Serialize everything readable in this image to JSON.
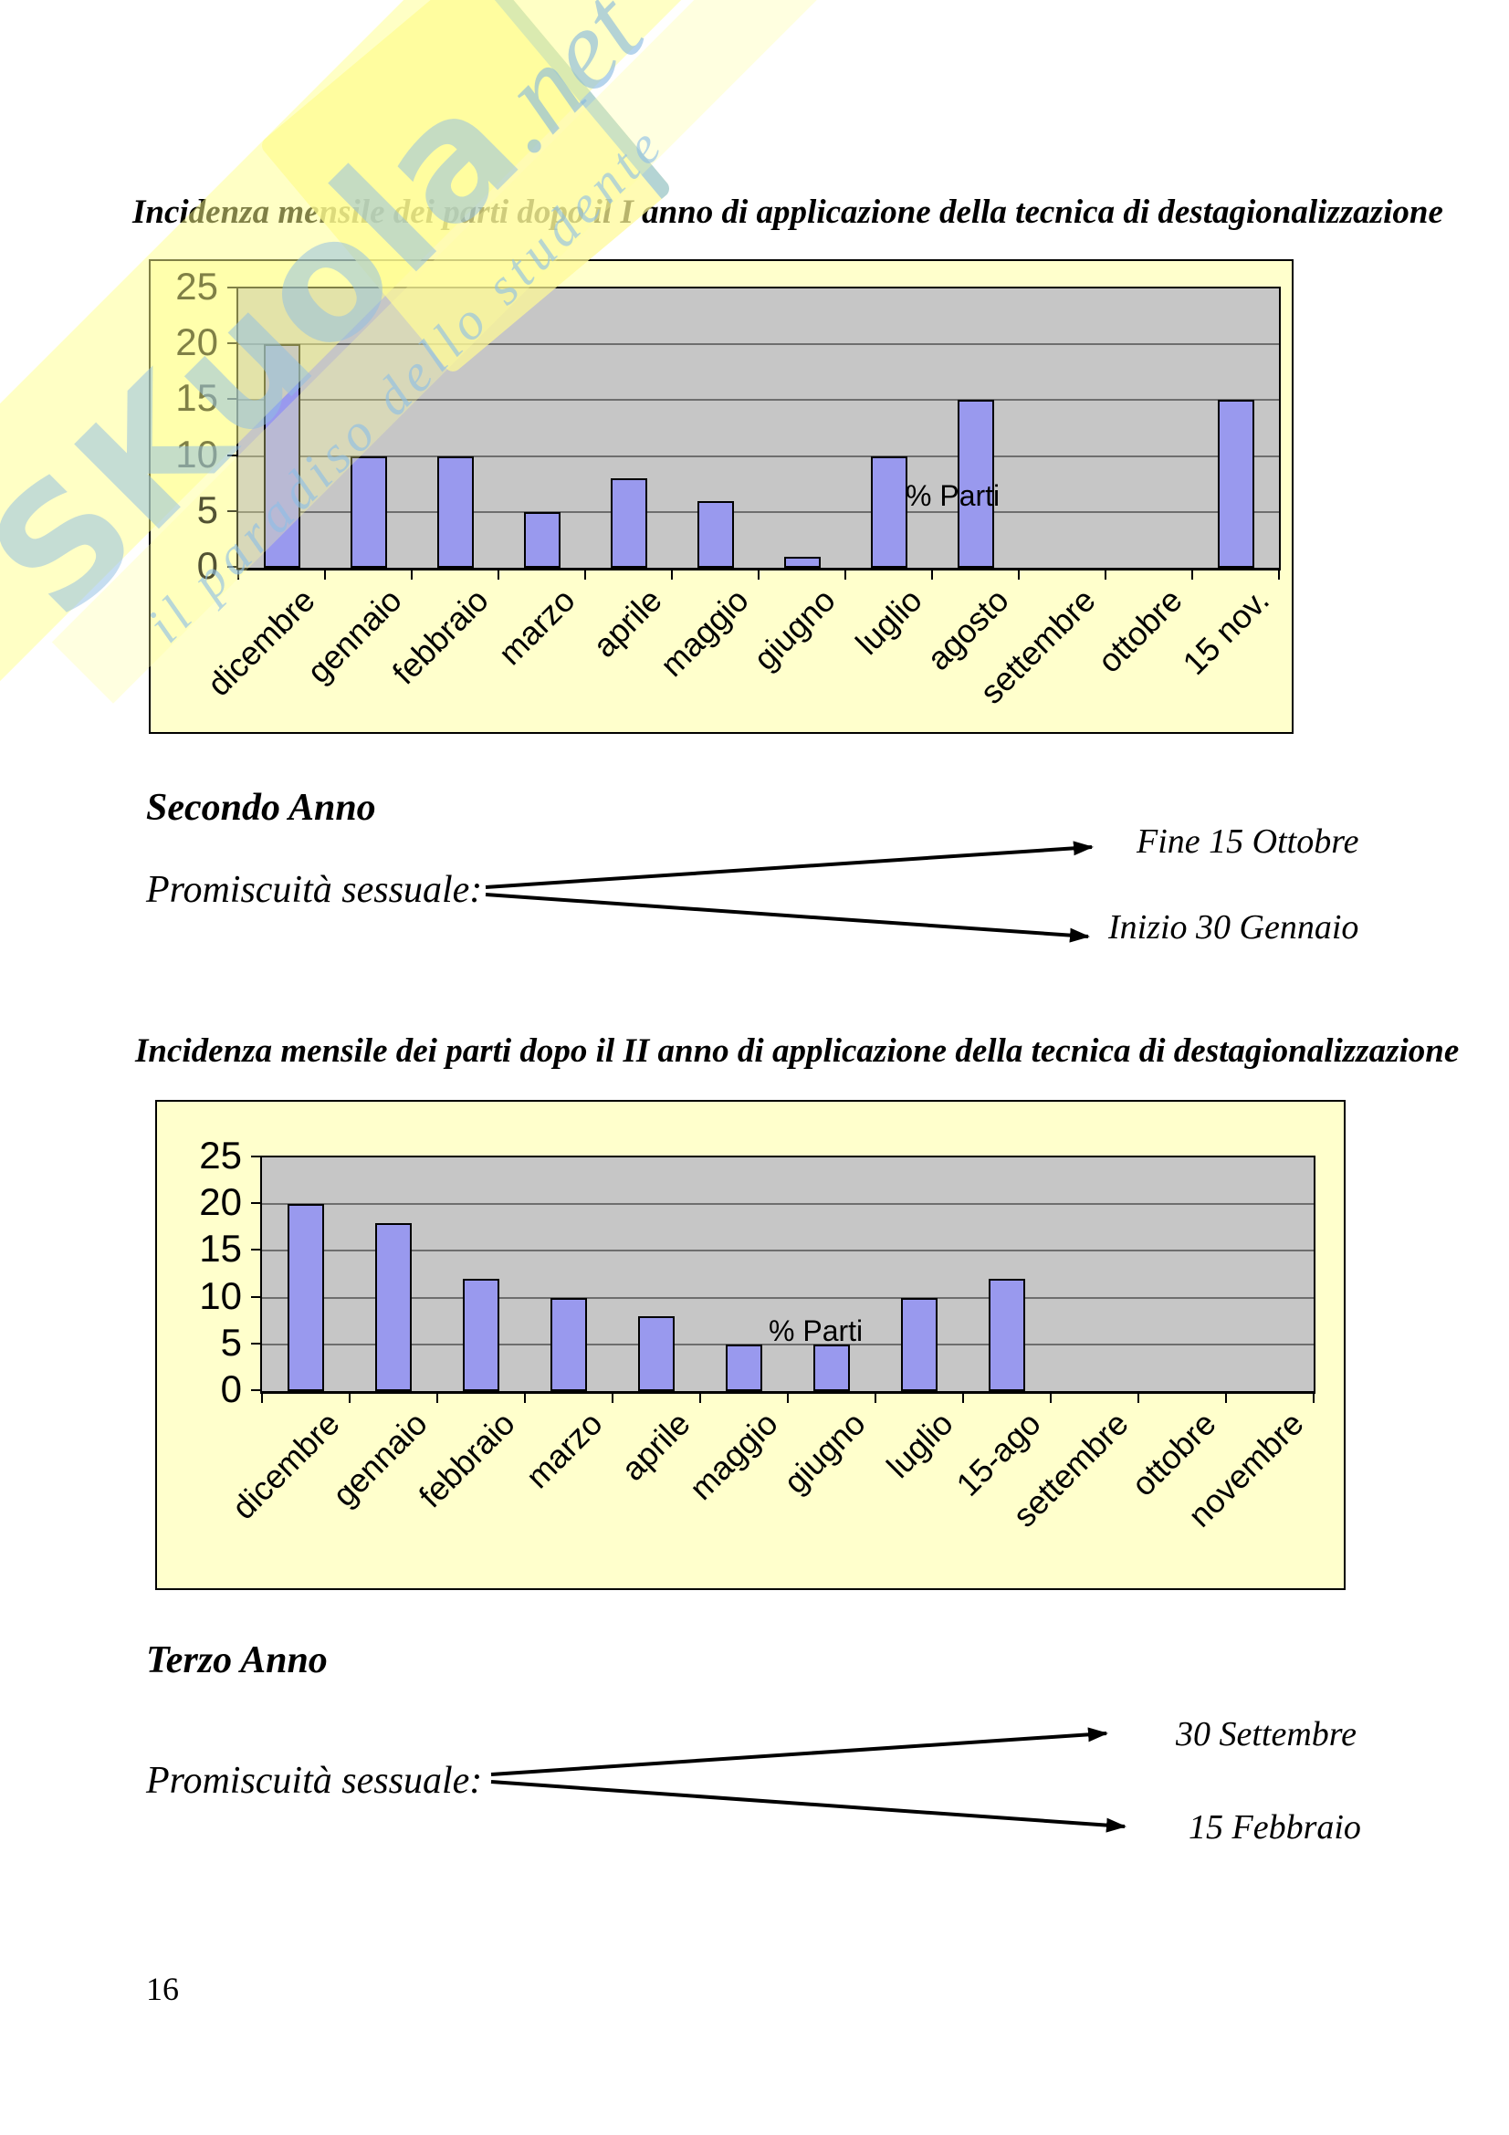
{
  "page_number": "16",
  "watermark": {
    "brand": "SKuola",
    "tld": ".net",
    "tagline": "il paradiso dello studente"
  },
  "second_year": {
    "heading": "Secondo Anno",
    "label": "Promiscuità sessuale:",
    "top_item": "Fine 15 Ottobre",
    "bottom_item": "Inizio 30 Gennaio"
  },
  "third_year": {
    "heading": "Terzo Anno",
    "label": "Promiscuità sessuale:",
    "top_item": "30 Settembre",
    "bottom_item": "15 Febbraio"
  },
  "chart_data": [
    {
      "type": "bar",
      "title": "Incidenza mensile dei parti dopo il I anno di applicazione della tecnica di destagionalizzazione",
      "categories": [
        "dicembre",
        "gennaio",
        "febbraio",
        "marzo",
        "aprile",
        "maggio",
        "giugno",
        "luglio",
        "agosto",
        "settembre",
        "ottobre",
        "15 nov."
      ],
      "values": [
        20,
        10,
        10,
        5,
        8,
        6,
        1,
        10,
        15,
        0,
        0,
        15
      ],
      "series_label": "% Parti",
      "xlabel": "",
      "ylabel": "",
      "ylim": [
        0,
        25
      ],
      "yticks": [
        0,
        5,
        10,
        15,
        20,
        25
      ],
      "grid": true,
      "legend_position": "inside-plot",
      "x_tick_rotation": -45,
      "colors": {
        "bar": "#9999ee",
        "plot_bg": "#c6c6c6",
        "chart_bg": "#ffffcc",
        "gridline": "#6e6e6e"
      }
    },
    {
      "type": "bar",
      "title": "Incidenza mensile dei parti dopo il II anno di applicazione della tecnica di destagionalizzazione",
      "categories": [
        "dicembre",
        "gennaio",
        "febbraio",
        "marzo",
        "aprile",
        "maggio",
        "giugno",
        "luglio",
        "15-ago",
        "settembre",
        "ottobre",
        "novembre"
      ],
      "values": [
        20,
        18,
        12,
        10,
        8,
        5,
        5,
        10,
        12,
        0,
        0,
        0
      ],
      "series_label": "% Parti",
      "xlabel": "",
      "ylabel": "",
      "ylim": [
        0,
        25
      ],
      "yticks": [
        0,
        5,
        10,
        15,
        20,
        25
      ],
      "grid": true,
      "legend_position": "inside-plot",
      "x_tick_rotation": -45,
      "colors": {
        "bar": "#9999ee",
        "plot_bg": "#c6c6c6",
        "chart_bg": "#ffffcc",
        "gridline": "#6e6e6e"
      }
    }
  ]
}
